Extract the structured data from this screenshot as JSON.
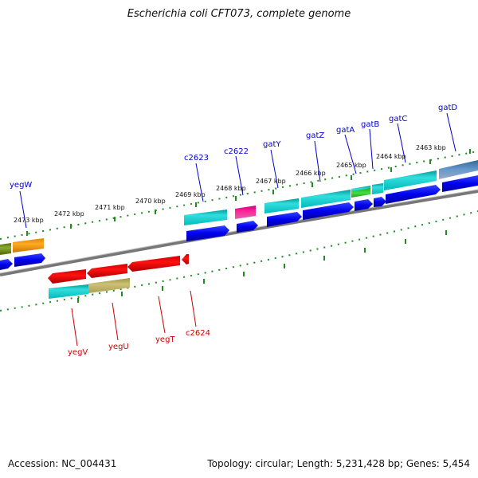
{
  "title": "Escherichia coli CFT073, complete genome",
  "footer": {
    "accession": "Accession: NC_004431",
    "summary": "Topology: circular; Length: 5,231,428 bp; Genes: 5,454"
  },
  "colors": {
    "forward_label": "#0000cc",
    "reverse_label": "#cc0000",
    "tick": "#228b22",
    "backbone": "#777777"
  },
  "kbp_labels": [
    "2473 kbp",
    "2472 kbp",
    "2471 kbp",
    "2470 kbp",
    "2469 kbp",
    "2468 kbp",
    "2467 kbp",
    "2466 kbp",
    "2465 kbp",
    "2464 kbp",
    "2463 kbp"
  ],
  "forward_genes": [
    "yegW",
    "c2623",
    "c2622",
    "gatY",
    "gatZ",
    "gatA",
    "gatB",
    "gatC",
    "gatD"
  ],
  "reverse_genes": [
    "yegV",
    "yegU",
    "yegT",
    "c2624"
  ]
}
